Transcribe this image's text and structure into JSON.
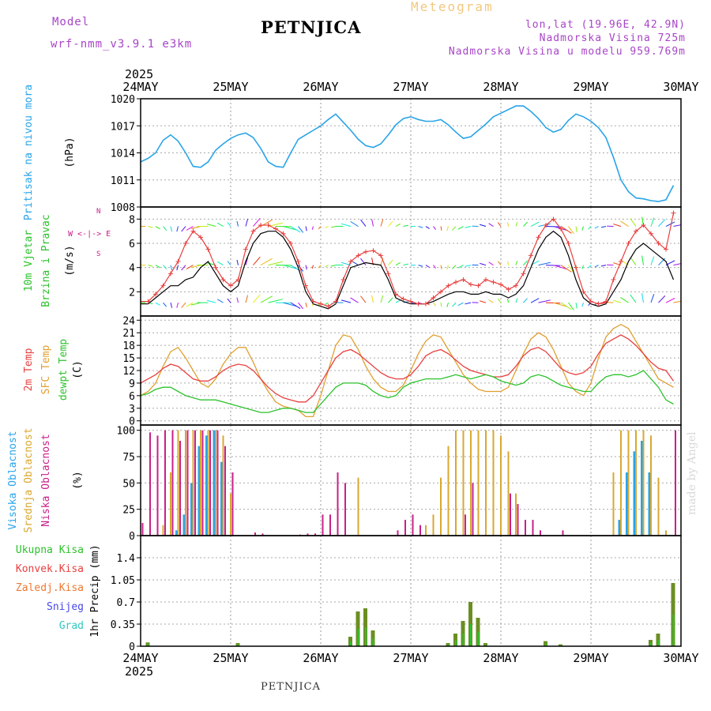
{
  "header": {
    "model_label": "Model",
    "model_name": "wrf-nmm_v3.9.1 e3km",
    "station": "PETNJICA",
    "title": "Meteogram",
    "coords": "lon,lat (19.96E, 42.9N)",
    "elevation": "Nadmorska Visina 725m",
    "model_elevation": "Nadmorska Visina u modelu 959.769m",
    "footer_station": "PETNJICA",
    "credit": "made by Angel"
  },
  "colors": {
    "pressure": "#29a4e8",
    "temp2m": "#e84040",
    "sfc_temp": "#e0a030",
    "dewpoint": "#2cc22c",
    "high_cloud": "#29a4e8",
    "mid_cloud": "#d8a830",
    "low_cloud": "#c8208a",
    "total_precip": "#2cc22c",
    "conv_precip": "#e84040",
    "frozen_precip": "#f07830",
    "snow": "#4848e8",
    "hail": "#30c8c0",
    "wind_speed": "#000000",
    "wind_gust": "#e84040"
  },
  "time_axis": {
    "year": "2025",
    "labels": [
      "24MAY",
      "25MAY",
      "26MAY",
      "27MAY",
      "28MAY",
      "29MAY",
      "30MAY"
    ],
    "hours_total": 144,
    "step_hours": 2
  },
  "panels": {
    "pressure": {
      "label": "Pritisak na nivou mora",
      "unit": "(hPa)",
      "ticks": [
        "1020",
        "1017",
        "1014",
        "1011",
        "1008"
      ]
    },
    "wind": {
      "label1": "10m Vjetar",
      "label2": "Brzina i Pravac",
      "unit": "(m/s)",
      "ticks": [
        "8",
        "6",
        "4",
        "2"
      ],
      "compass": "W <-|-> E",
      "compass_n": "N",
      "compass_s": "S"
    },
    "temp": {
      "label1": "2m Temp",
      "label2": "SFC Temp",
      "label3": "dewpt Temp",
      "unit": "(C)",
      "ticks": [
        "24",
        "21",
        "18",
        "15",
        "12",
        "9",
        "6",
        "3",
        "0"
      ]
    },
    "cloud": {
      "label1": "Visoka Oblacnost",
      "label2": "Srednja Oblacnost",
      "label3": "Niska Oblacnost",
      "unit": "(%)",
      "ticks": [
        "100",
        "75",
        "50",
        "25",
        "0"
      ]
    },
    "precip": {
      "legend": [
        "Ukupna Kisa",
        "Konvek.Kisa",
        "Zaledj.Kisa",
        "Snijeg",
        "Grad"
      ],
      "unit": "1hr Precip (mm)",
      "ticks": [
        "1.4",
        "1.05",
        "0.7",
        "0.35",
        "0"
      ]
    }
  },
  "chart_data": [
    {
      "type": "line",
      "title": "Pritisak na nivou mora",
      "ylabel": "hPa",
      "ylim": [
        1008,
        1020
      ],
      "x_hours_step": 2,
      "series": [
        {
          "name": "MSLP",
          "values": [
            1013,
            1013.4,
            1014,
            1015.4,
            1016,
            1015.3,
            1014,
            1012.5,
            1012.4,
            1013,
            1014.3,
            1015,
            1015.6,
            1016,
            1016.2,
            1015.7,
            1014.5,
            1013,
            1012.5,
            1012.4,
            1014,
            1015.5,
            1016,
            1016.5,
            1017,
            1017.7,
            1018.3,
            1017.4,
            1016.5,
            1015.5,
            1014.8,
            1014.6,
            1015,
            1016,
            1017.1,
            1017.8,
            1018,
            1017.7,
            1017.5,
            1017.5,
            1017.7,
            1017.1,
            1016.3,
            1015.6,
            1015.8,
            1016.5,
            1017.2,
            1018,
            1018.4,
            1018.8,
            1019.2,
            1019.2,
            1018.6,
            1017.8,
            1016.8,
            1016.3,
            1016.6,
            1017.6,
            1018.3,
            1018,
            1017.5,
            1016.8,
            1015.7,
            1013.5,
            1011,
            1009.7,
            1009,
            1008.9,
            1008.7,
            1008.6,
            1008.8,
            1010.4
          ]
        }
      ]
    },
    {
      "type": "line",
      "title": "10m Vjetar Brzina i Pravac",
      "ylabel": "m/s",
      "ylim": [
        0,
        9
      ],
      "x_hours_step": 2,
      "series": [
        {
          "name": "speed",
          "values": [
            1,
            1,
            1.5,
            2,
            2.5,
            2.5,
            3,
            3.2,
            4,
            4.5,
            3.5,
            2.5,
            2,
            2.5,
            4.5,
            6,
            6.8,
            7,
            7,
            6.5,
            5.5,
            4,
            2,
            1,
            0.8,
            0.6,
            1,
            2.5,
            4,
            4.2,
            4.4,
            4.3,
            4.2,
            3,
            1.5,
            1.2,
            1,
            1,
            1,
            1.2,
            1.5,
            1.8,
            2,
            2,
            1.8,
            1.8,
            2,
            1.8,
            1.8,
            1.5,
            1.8,
            2.5,
            4,
            5.5,
            6.5,
            7,
            6.5,
            5,
            3,
            1.5,
            1,
            0.8,
            1,
            2,
            3,
            4.5,
            5.5,
            6,
            5.5,
            5,
            4.5,
            3
          ]
        },
        {
          "name": "gust",
          "values": [
            1.2,
            1.2,
            1.8,
            2.5,
            3.5,
            4.5,
            6,
            7,
            6.5,
            5.5,
            4,
            3,
            2.5,
            3,
            5.5,
            7,
            7.5,
            7.5,
            7.2,
            6.8,
            6,
            4.5,
            2.5,
            1.2,
            1,
            0.8,
            1.2,
            3,
            4.5,
            5,
            5.3,
            5.4,
            5,
            3.5,
            1.8,
            1.4,
            1.2,
            1,
            1,
            1.5,
            2,
            2.5,
            2.8,
            3,
            2.6,
            2.5,
            3,
            2.8,
            2.6,
            2.2,
            2.5,
            3.5,
            5,
            6.5,
            7.5,
            8,
            7.2,
            6,
            4,
            2,
            1.2,
            1,
            1.2,
            3,
            4.5,
            6,
            7,
            7.5,
            6.8,
            6,
            5.5,
            8.5
          ]
        }
      ]
    },
    {
      "type": "line",
      "title": "2m Temp / SFC Temp / dewpt Temp",
      "ylabel": "C",
      "ylim": [
        -1,
        25
      ],
      "x_hours_step": 2,
      "series": [
        {
          "name": "2m Temp",
          "values": [
            9,
            10,
            11,
            12.5,
            13.5,
            13,
            11.5,
            10,
            9.5,
            9.5,
            10.5,
            12,
            13,
            13.5,
            13.2,
            12,
            10,
            8,
            6.5,
            5.5,
            5,
            4.5,
            4.5,
            6,
            9,
            12,
            15,
            16.5,
            17,
            16,
            14.5,
            13,
            11.5,
            10.5,
            10,
            10,
            11,
            13,
            15.5,
            16.5,
            17,
            16,
            14.5,
            13,
            12,
            11.5,
            11,
            10.5,
            10.5,
            11,
            13,
            15.5,
            17,
            17.5,
            16.5,
            14.5,
            12.5,
            11.5,
            11,
            11.5,
            13,
            16,
            18.5,
            19.5,
            20.5,
            19.5,
            18,
            16,
            14,
            12.5,
            12,
            9.5
          ]
        },
        {
          "name": "SFC Temp",
          "values": [
            6,
            7,
            9,
            13,
            16.5,
            17.5,
            15,
            12,
            9,
            8,
            10,
            13.5,
            16,
            17.5,
            17.5,
            14,
            10,
            7,
            4.5,
            3.5,
            3,
            2.5,
            1,
            1,
            6,
            12,
            18,
            20.5,
            20,
            17,
            13,
            10,
            8,
            7,
            7,
            8.5,
            12,
            16,
            19,
            20.5,
            20,
            17,
            14,
            11,
            9,
            7.5,
            7,
            7,
            7,
            8,
            12,
            16,
            19.5,
            21,
            20,
            17,
            13,
            9,
            7,
            6,
            9,
            15,
            20,
            22,
            23,
            22,
            19,
            16,
            13,
            10,
            9,
            8
          ]
        },
        {
          "name": "dewpt Temp",
          "values": [
            6,
            6.5,
            7.5,
            8,
            8,
            7,
            6,
            5.5,
            5,
            5,
            5,
            4.5,
            4,
            3.5,
            3,
            2.5,
            2,
            2,
            2.5,
            3,
            3,
            2.5,
            2,
            2,
            4,
            6,
            8,
            9,
            9,
            9,
            8.5,
            7,
            6,
            5.5,
            6,
            8,
            9,
            9.5,
            10,
            10,
            10,
            10.5,
            11,
            10.5,
            10,
            10.5,
            11,
            10.5,
            9.5,
            9,
            8.5,
            9,
            10.5,
            11,
            10.5,
            9.5,
            8.5,
            8,
            7.5,
            7,
            7,
            9,
            10.5,
            11,
            11,
            10.5,
            11,
            12,
            10,
            8,
            5,
            4
          ]
        }
      ]
    },
    {
      "type": "bar",
      "title": "Oblacnost (%)",
      "ylabel": "%",
      "ylim": [
        0,
        100
      ],
      "x_hours_step": 2,
      "series": [
        {
          "name": "Visoka Oblacnost",
          "values": [
            0,
            0,
            0,
            0,
            0,
            5,
            20,
            50,
            85,
            95,
            100,
            70,
            0,
            0,
            0,
            0,
            0,
            0,
            0,
            0,
            0,
            0,
            0,
            0,
            0,
            0,
            0,
            0,
            0,
            0,
            0,
            0,
            0,
            0,
            0,
            0,
            0,
            0,
            0,
            0,
            0,
            0,
            0,
            0,
            0,
            0,
            0,
            0,
            0,
            0,
            0,
            0,
            0,
            0,
            0,
            0,
            0,
            0,
            0,
            0,
            0,
            0,
            0,
            0,
            15,
            60,
            80,
            90,
            60,
            0,
            0,
            0
          ]
        },
        {
          "name": "Srednja Oblacnost",
          "values": [
            0,
            0,
            0,
            10,
            60,
            100,
            100,
            100,
            100,
            100,
            100,
            95,
            40,
            0,
            0,
            0,
            0,
            0,
            0,
            0,
            0,
            0,
            0,
            0,
            0,
            0,
            0,
            0,
            0,
            55,
            0,
            0,
            0,
            0,
            0,
            0,
            0,
            0,
            10,
            20,
            55,
            85,
            100,
            100,
            100,
            100,
            100,
            100,
            95,
            80,
            40,
            0,
            0,
            0,
            0,
            0,
            0,
            0,
            0,
            0,
            0,
            0,
            0,
            60,
            100,
            100,
            100,
            100,
            95,
            55,
            5,
            0
          ]
        },
        {
          "name": "Niska Oblacnost",
          "values": [
            12,
            98,
            95,
            100,
            100,
            90,
            100,
            100,
            100,
            100,
            100,
            85,
            60,
            0,
            0,
            3,
            2,
            0,
            0,
            0,
            0,
            1,
            2,
            2,
            20,
            20,
            60,
            50,
            0,
            0,
            0,
            0,
            0,
            0,
            5,
            15,
            20,
            10,
            0,
            0,
            0,
            0,
            0,
            20,
            50,
            0,
            0,
            0,
            0,
            40,
            30,
            15,
            15,
            5,
            0,
            0,
            5,
            0,
            0,
            0,
            0,
            0,
            0,
            0,
            0,
            0,
            0,
            0,
            0,
            0,
            0,
            100
          ]
        }
      ]
    },
    {
      "type": "bar",
      "title": "1hr Precip (mm)",
      "ylabel": "mm",
      "ylim": [
        0,
        1.75
      ],
      "x_hours_step": 2,
      "series": [
        {
          "name": "Ukupna Kisa",
          "values": [
            0,
            0.06,
            0,
            0,
            0,
            0,
            0,
            0,
            0,
            0,
            0,
            0,
            0,
            0.05,
            0,
            0,
            0,
            0,
            0,
            0,
            0,
            0,
            0,
            0,
            0,
            0,
            0,
            0,
            0.15,
            0.55,
            0.6,
            0.25,
            0,
            0,
            0,
            0,
            0,
            0,
            0,
            0,
            0,
            0.05,
            0.2,
            0.4,
            0.7,
            0.45,
            0.05,
            0,
            0,
            0,
            0,
            0,
            0,
            0,
            0.08,
            0,
            0.03,
            0,
            0,
            0,
            0,
            0,
            0,
            0,
            0,
            0,
            0,
            0,
            0.1,
            0.2,
            0,
            1.0
          ]
        }
      ]
    }
  ]
}
